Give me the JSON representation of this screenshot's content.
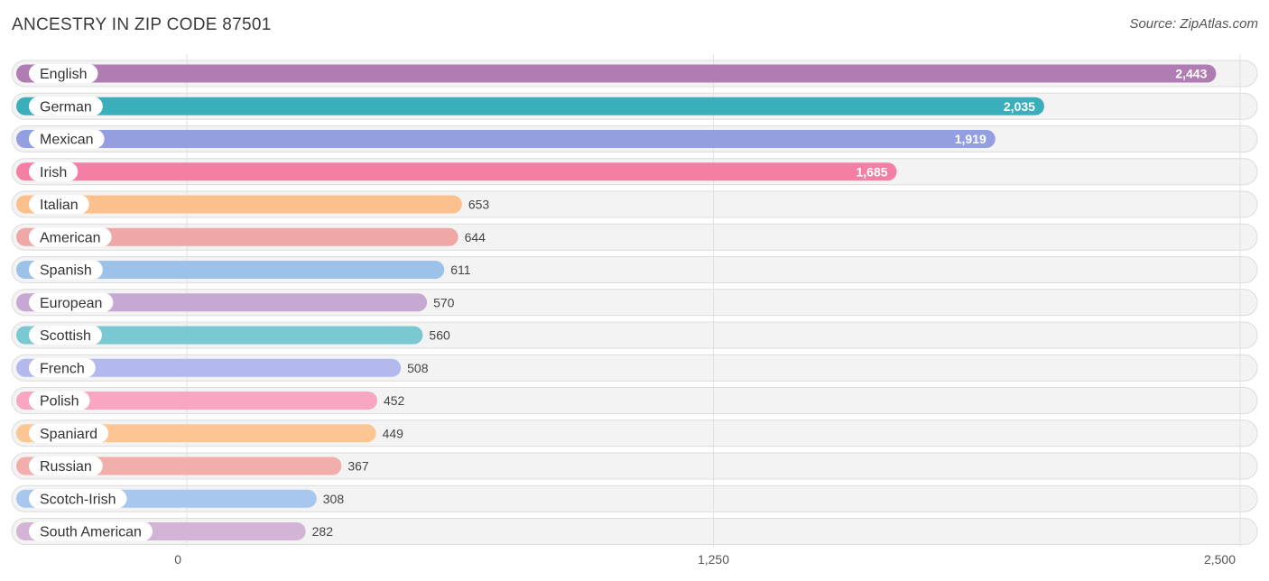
{
  "header": {
    "title": "ANCESTRY IN ZIP CODE 87501",
    "source": "Source: ZipAtlas.com"
  },
  "chart_data": {
    "type": "bar",
    "orientation": "horizontal",
    "title": "ANCESTRY IN ZIP CODE 87501",
    "xlabel": "",
    "ylabel": "",
    "xlim": [
      0,
      2500
    ],
    "ticks": [
      0,
      1250,
      2500
    ],
    "tick_labels": [
      "0",
      "1,250",
      "2,500"
    ],
    "grid": true,
    "categories": [
      "English",
      "German",
      "Mexican",
      "Irish",
      "Italian",
      "American",
      "Spanish",
      "European",
      "Scottish",
      "French",
      "Polish",
      "Spaniard",
      "Russian",
      "Scotch-Irish",
      "South American"
    ],
    "values": [
      2443,
      2035,
      1919,
      1685,
      653,
      644,
      611,
      570,
      560,
      508,
      452,
      449,
      367,
      308,
      282
    ],
    "value_labels": [
      "2,443",
      "2,035",
      "1,919",
      "1,685",
      "653",
      "644",
      "611",
      "570",
      "560",
      "508",
      "452",
      "449",
      "367",
      "308",
      "282"
    ],
    "colors": [
      "#b07db3",
      "#3aafbb",
      "#949fe2",
      "#f57fa4",
      "#fcc08c",
      "#f0a8a6",
      "#9cc2ea",
      "#c7a8d2",
      "#7ac8d2",
      "#b3b9ec",
      "#f8a6c2",
      "#fcc694",
      "#f1aeaa",
      "#a8c7ee",
      "#d3b3d6"
    ]
  }
}
